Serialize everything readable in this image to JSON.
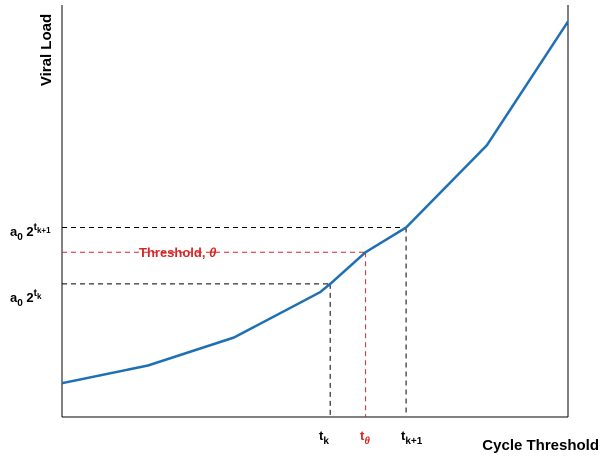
{
  "chart_data": {
    "type": "line",
    "xlabel": "Cycle Threshold",
    "ylabel": "Viral Load",
    "xlim": [
      0,
      10
    ],
    "ylim": [
      0,
      10
    ],
    "grid": false,
    "axes_ticks": false,
    "series": [
      {
        "color": "#1f6fb4",
        "x": [
          0,
          1.7,
          3.4,
          5.1,
          5.3,
          6.0,
          6.8,
          8.4,
          10.0
        ],
        "y": [
          0.82,
          1.25,
          1.93,
          3.03,
          3.23,
          4.0,
          4.6,
          6.6,
          9.6
        ]
      }
    ],
    "annotations": {
      "tk": {
        "x": 5.3,
        "y": 3.23,
        "x_label_main": "t",
        "x_label_sub": "k",
        "y_label_main": "a",
        "y_label_sub0": "0",
        "y_label_mid": " 2",
        "y_label_sup": "t",
        "y_label_supsub": "k",
        "color": "#000000"
      },
      "tk1": {
        "x": 6.8,
        "y": 4.6,
        "x_label_main": "t",
        "x_label_sub": "k+1",
        "y_label_main": "a",
        "y_label_sub0": "0",
        "y_label_mid": " 2",
        "y_label_sup": "t",
        "y_label_supsub": "k+1",
        "color": "#000000"
      },
      "theta": {
        "x": 6.0,
        "y": 4.0,
        "x_label_main": "t",
        "x_label_sub": "θ",
        "threshold_label": "Threshold, ",
        "threshold_symbol": "θ",
        "color": "#d62728"
      }
    }
  }
}
